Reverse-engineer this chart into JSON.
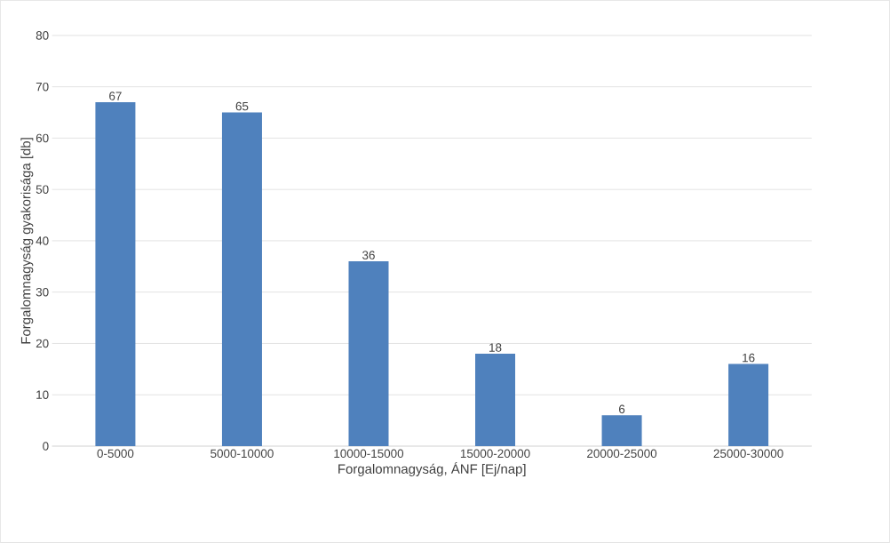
{
  "chart_data": {
    "type": "bar",
    "xlabel": "Forgalomnagyság, ÁNF [Ej/nap]",
    "ylabel": "Forgalomnagyság gyakorisága [db]",
    "categories": [
      "0-5000",
      "5000-10000",
      "10000-15000",
      "15000-20000",
      "20000-25000",
      "25000-30000"
    ],
    "values": [
      67,
      65,
      36,
      18,
      6,
      16
    ],
    "color": "#4f81bd",
    "ylim": [
      0,
      80
    ],
    "yticks": [
      0,
      10,
      20,
      30,
      40,
      50,
      60,
      70,
      80
    ],
    "grid": "y",
    "data_labels": true
  }
}
